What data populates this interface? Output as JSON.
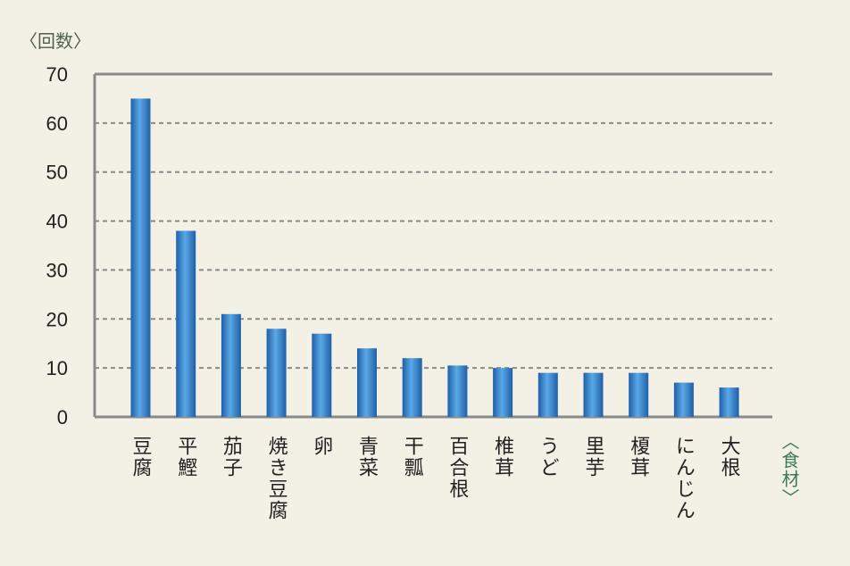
{
  "chart_data": {
    "type": "bar",
    "ylabel": "〈回数〉",
    "xlabel": "〈食材〉",
    "categories": [
      "豆腐",
      "平鰹",
      "茄子",
      "焼き豆腐",
      "卵",
      "青菜",
      "干瓢",
      "百合根",
      "椎茸",
      "うど",
      "里芋",
      "榎茸",
      "にんじん",
      "大根"
    ],
    "values": [
      65,
      38,
      21,
      18,
      17,
      14,
      12,
      10.5,
      10,
      9,
      9,
      9,
      7,
      6
    ],
    "ylim": [
      0,
      70
    ],
    "yticks": [
      0,
      10,
      20,
      30,
      40,
      50,
      60,
      70
    ],
    "grid": true,
    "colors": {
      "bar_dark": "#1f5fa8",
      "bar_light": "#5aa9e6",
      "axis": "#8a8a8a",
      "grid": "#8a8a8a",
      "background": "#f3f1e6"
    }
  }
}
